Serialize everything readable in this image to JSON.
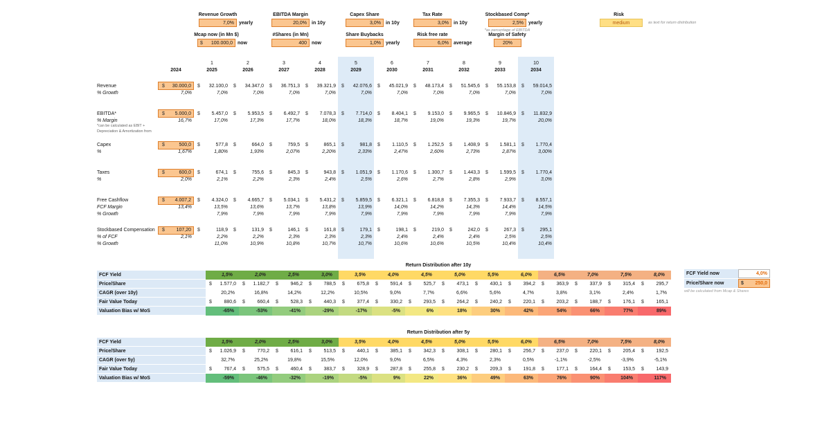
{
  "colors": {
    "input_fill": "#FBC690",
    "input_border": "#DD7E2B",
    "year_band": "#DEEBF7",
    "label_blue": "#DCE9F6",
    "zone_green": "#6FAC46",
    "zone_gold": "#FFD965",
    "zone_orange": "#F4B183",
    "scale": [
      "#63BE7B",
      "#FFEB84",
      "#F8696B"
    ],
    "risk_fill": "#FFDF84",
    "accent_text": "#E26B0A"
  },
  "params": {
    "row1": [
      {
        "label": "Revenue Growth",
        "value": "7,0%",
        "unit": "yearly"
      },
      {
        "label": "EBITDA Margin",
        "value": "20,0%",
        "unit": "in 10y"
      },
      {
        "label": "Capex Share",
        "value": "3,0%",
        "unit": "in 10y"
      },
      {
        "label": "Tax Rate",
        "value": "3,0%",
        "unit": "in 10y"
      },
      {
        "label": "Stockbased Comp*",
        "value": "2,5%",
        "unit": "yearly",
        "note": "*as percentage of EBITDA"
      },
      {
        "label": "Risk",
        "value": "medium",
        "unit": "as text for return distribution",
        "type": "risk"
      }
    ],
    "row2": [
      {
        "label": "Mcap now (in Mn $)",
        "prefix": "$",
        "value": "100.000,0",
        "unit": "now"
      },
      {
        "label": "#Shares (in Mn)",
        "value": "400",
        "unit": "now"
      },
      {
        "label": "Share Buybacks",
        "value": "1,0%",
        "unit": "yearly"
      },
      {
        "label": "Risk free rate",
        "value": "6,0%",
        "unit": "average"
      },
      {
        "label": "Margin of Safety",
        "value": "20%",
        "type": "mos"
      }
    ]
  },
  "main_table": {
    "col_numbers": [
      "",
      "1",
      "2",
      "3",
      "4",
      "5",
      "6",
      "7",
      "8",
      "9",
      "10"
    ],
    "years": [
      "2024",
      "2025",
      "2026",
      "2027",
      "2028",
      "2029",
      "2030",
      "2031",
      "2032",
      "2033",
      "2034"
    ],
    "highlight_cols": [
      5,
      10
    ],
    "currency": "$",
    "sections": [
      {
        "label": "Revenue",
        "money": [
          "30.000,0",
          "32.100,0",
          "34.347,0",
          "36.751,3",
          "39.321,9",
          "42.076,6",
          "45.021,9",
          "48.173,4",
          "51.545,6",
          "55.153,8",
          "59.014,5"
        ],
        "subs": [
          {
            "label": "% Growth",
            "values": [
              "7,0%",
              "7,0%",
              "7,0%",
              "7,0%",
              "7,0%",
              "7,0%",
              "7,0%",
              "7,0%",
              "7,0%",
              "7,0%",
              "7,0%"
            ]
          }
        ]
      },
      {
        "label": "EBITDA*",
        "money": [
          "5.000,0",
          "5.457,0",
          "5.953,5",
          "6.492,7",
          "7.078,3",
          "7.714,0",
          "8.404,1",
          "9.153,0",
          "9.965,5",
          "10.846,9",
          "11.832,9"
        ],
        "subs": [
          {
            "label": "% Margin",
            "values": [
              "16,7%",
              "17,0%",
              "17,3%",
              "17,7%",
              "18,0%",
              "18,3%",
              "18,7%",
              "19,0%",
              "19,3%",
              "19,7%",
              "20,0%"
            ]
          }
        ],
        "footnote": [
          "*can be calculated as EBIT +",
          "Depreciation & Amortization from"
        ]
      },
      {
        "label": "Capex",
        "money": [
          "500,0",
          "577,8",
          "664,0",
          "759,5",
          "865,1",
          "981,8",
          "1.110,5",
          "1.252,5",
          "1.408,9",
          "1.581,1",
          "1.770,4"
        ],
        "subs": [
          {
            "label": "%",
            "values": [
              "1,67%",
              "1,80%",
              "1,93%",
              "2,07%",
              "2,20%",
              "2,33%",
              "2,47%",
              "2,60%",
              "2,73%",
              "2,87%",
              "3,00%"
            ]
          }
        ]
      },
      {
        "label": "Taxes",
        "money": [
          "600,0",
          "674,1",
          "755,6",
          "845,3",
          "943,8",
          "1.051,9",
          "1.170,6",
          "1.300,7",
          "1.443,3",
          "1.599,5",
          "1.770,4"
        ],
        "subs": [
          {
            "label": "%",
            "values": [
              "2,0%",
              "2,1%",
              "2,2%",
              "2,3%",
              "2,4%",
              "2,5%",
              "2,6%",
              "2,7%",
              "2,8%",
              "2,9%",
              "3,0%"
            ]
          }
        ]
      },
      {
        "label": "Free Cashflow",
        "money": [
          "4.007,2",
          "4.324,0",
          "4.665,7",
          "5.034,1",
          "5.431,2",
          "5.859,5",
          "6.321,1",
          "6.818,8",
          "7.355,3",
          "7.933,7",
          "8.557,1"
        ],
        "subs": [
          {
            "label": "FCF Margin",
            "values": [
              "13,4%",
              "13,5%",
              "13,6%",
              "13,7%",
              "13,8%",
              "13,9%",
              "14,0%",
              "14,2%",
              "14,3%",
              "14,4%",
              "14,5%"
            ]
          },
          {
            "label": "% Growth",
            "values": [
              "",
              "7,9%",
              "7,9%",
              "7,9%",
              "7,9%",
              "7,9%",
              "7,9%",
              "7,9%",
              "7,9%",
              "7,9%",
              "7,9%"
            ]
          }
        ]
      },
      {
        "label": "Stockbased Compensation",
        "money": [
          "107,20",
          "118,9",
          "131,9",
          "146,1",
          "161,8",
          "179,1",
          "198,1",
          "219,0",
          "242,0",
          "267,3",
          "295,1"
        ],
        "subs": [
          {
            "label": "% of FCF",
            "values": [
              "2,1%",
              "2,2%",
              "2,2%",
              "2,3%",
              "2,3%",
              "2,3%",
              "2,4%",
              "2,4%",
              "2,4%",
              "2,5%",
              "2,5%"
            ]
          },
          {
            "label": "% Growth",
            "values": [
              "",
              "11,0%",
              "10,9%",
              "10,8%",
              "10,7%",
              "10,7%",
              "10,6%",
              "10,6%",
              "10,5%",
              "10,4%",
              "10,4%"
            ]
          }
        ]
      }
    ]
  },
  "return_tables": [
    {
      "title": "Return Distribution after 10y",
      "yield_label": "FCF Yield",
      "price_label": "Price/Share",
      "cagr_label": "CAGR (over 10y)",
      "fair_label": "Fair Value Today",
      "bias_label": "Valuation Bias w/ MoS",
      "yields": [
        "1,5%",
        "2,0%",
        "2,5%",
        "3,0%",
        "3,5%",
        "4,0%",
        "4,5%",
        "5,0%",
        "5,5%",
        "6,0%",
        "6,5%",
        "7,0%",
        "7,5%",
        "8,0%"
      ],
      "zones": [
        "g",
        "g",
        "g",
        "g",
        "y",
        "y",
        "y",
        "y",
        "y",
        "y",
        "o",
        "o",
        "o",
        "o"
      ],
      "price": [
        "1.577,0",
        "1.182,7",
        "946,2",
        "788,5",
        "675,8",
        "591,4",
        "525,7",
        "473,1",
        "430,1",
        "394,2",
        "363,9",
        "337,9",
        "315,4",
        "295,7"
      ],
      "cagr": [
        "20,2%",
        "16,8%",
        "14,2%",
        "12,2%",
        "10,5%",
        "9,0%",
        "7,7%",
        "6,6%",
        "5,6%",
        "4,7%",
        "3,8%",
        "3,1%",
        "2,4%",
        "1,7%"
      ],
      "fair": [
        "880,6",
        "660,4",
        "528,3",
        "440,3",
        "377,4",
        "330,2",
        "293,5",
        "264,2",
        "240,2",
        "220,1",
        "203,2",
        "188,7",
        "176,1",
        "165,1"
      ],
      "bias": [
        "-65%",
        "-53%",
        "-41%",
        "-29%",
        "-17%",
        "-5%",
        "6%",
        "18%",
        "30%",
        "42%",
        "54%",
        "66%",
        "77%",
        "89%"
      ]
    },
    {
      "title": "Return Distribution after 5y",
      "yield_label": "FCF Yield",
      "price_label": "Price/Share",
      "cagr_label": "CAGR (over 5y)",
      "fair_label": "Fair Value Today",
      "bias_label": "Valuation Bias w/ MoS",
      "yields": [
        "1,5%",
        "2,0%",
        "2,5%",
        "3,0%",
        "3,5%",
        "4,0%",
        "4,5%",
        "5,0%",
        "5,5%",
        "6,0%",
        "6,5%",
        "7,0%",
        "7,5%",
        "8,0%"
      ],
      "zones": [
        "g",
        "g",
        "g",
        "g",
        "y",
        "y",
        "y",
        "y",
        "y",
        "y",
        "o",
        "o",
        "o",
        "o"
      ],
      "price": [
        "1.026,9",
        "770,2",
        "616,1",
        "513,5",
        "440,1",
        "385,1",
        "342,3",
        "308,1",
        "280,1",
        "256,7",
        "237,0",
        "220,1",
        "205,4",
        "192,5"
      ],
      "cagr": [
        "32,7%",
        "25,2%",
        "19,8%",
        "15,5%",
        "12,0%",
        "9,0%",
        "6,5%",
        "4,3%",
        "2,3%",
        "0,5%",
        "-1,1%",
        "-2,5%",
        "-3,9%",
        "-5,1%"
      ],
      "fair": [
        "767,4",
        "575,5",
        "460,4",
        "383,7",
        "328,9",
        "287,8",
        "255,8",
        "230,2",
        "209,3",
        "191,8",
        "177,1",
        "164,4",
        "153,5",
        "143,9"
      ],
      "bias": [
        "-59%",
        "-46%",
        "-32%",
        "-19%",
        "-5%",
        "9%",
        "22%",
        "36%",
        "49%",
        "63%",
        "76%",
        "90%",
        "104%",
        "117%"
      ]
    }
  ],
  "side_box": {
    "yield_label": "FCF Yield now",
    "yield_value": "4,0%",
    "price_label": "Price/Share now",
    "price_prefix": "$",
    "price_value": "250,0",
    "note": "will be calculated from Mcap & Shares"
  }
}
